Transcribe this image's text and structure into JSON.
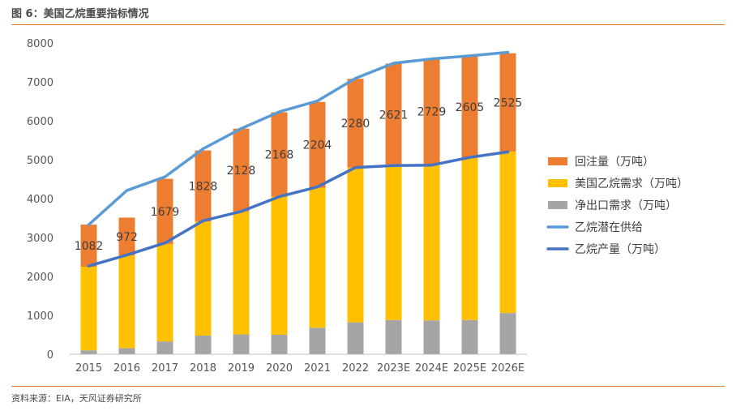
{
  "header": {
    "title": "图 6：美国乙烷重要指标情况"
  },
  "footer": {
    "source": "资料来源：EIA，天风证券研究所"
  },
  "chart_data": {
    "type": "bar",
    "categories": [
      "2015",
      "2016",
      "2017",
      "2018",
      "2019",
      "2020",
      "2021",
      "2022",
      "2023E",
      "2024E",
      "2025E",
      "2026E"
    ],
    "ylim": [
      0,
      8000
    ],
    "yticks": [
      "0",
      "1000",
      "2000",
      "3000",
      "4000",
      "5000",
      "6000",
      "7000",
      "8000"
    ],
    "grid": false,
    "legend_position": "right",
    "series": [
      {
        "name": "回注量（万吨）",
        "type": "stacked-bar",
        "color": "#ed7d31",
        "values": [
          1082,
          972,
          1679,
          1828,
          2128,
          2168,
          2204,
          2280,
          2621,
          2729,
          2605,
          2525
        ],
        "labels": [
          "1082",
          "972",
          "1679",
          "1828",
          "2128",
          "2168",
          "2204",
          "2280",
          "2621",
          "2729",
          "2605",
          "2525"
        ]
      },
      {
        "name": "美国乙烷需求（万吨）",
        "type": "stacked-bar",
        "color": "#ffc000",
        "values": [
          2150,
          2380,
          2500,
          2930,
          3160,
          3550,
          3600,
          3980,
          3970,
          4000,
          4170,
          4150
        ]
      },
      {
        "name": "净出口需求（万吨）",
        "type": "stacked-bar",
        "color": "#a5a5a5",
        "values": [
          100,
          160,
          330,
          480,
          510,
          500,
          680,
          820,
          880,
          870,
          880,
          1060
        ]
      },
      {
        "name": "乙烷潜在供给",
        "type": "line",
        "color": "#5b9bd5",
        "values": [
          3330,
          4210,
          4560,
          5280,
          5800,
          6230,
          6510,
          7090,
          7480,
          7590,
          7670,
          7760
        ]
      },
      {
        "name": "乙烷产量（万吨）",
        "type": "line",
        "color": "#4472c4",
        "values": [
          2270,
          2550,
          2860,
          3430,
          3670,
          4050,
          4300,
          4800,
          4850,
          4860,
          5060,
          5200
        ]
      }
    ]
  }
}
